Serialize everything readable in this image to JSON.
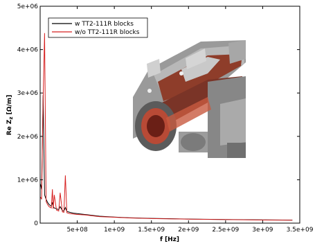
{
  "chart_data": {
    "type": "line",
    "title": "",
    "xlabel": "f [Hz]",
    "ylabel": "Re Z",
    "ylabel_subscript": "z",
    "ylabel_unit": "[Ω/m]",
    "xlim": [
      0,
      3500000000
    ],
    "ylim": [
      0,
      5000000
    ],
    "xticks": [
      500000000,
      1000000000,
      1500000000,
      2000000000,
      2500000000,
      3000000000,
      3500000000
    ],
    "xtick_labels": [
      "5e+08",
      "1e+09",
      "1.5e+09",
      "2e+09",
      "2.5e+09",
      "3e+09",
      "3.5e+09"
    ],
    "yticks": [
      0,
      1000000,
      2000000,
      3000000,
      4000000,
      5000000
    ],
    "ytick_labels": [
      "0",
      "1e+06",
      "2e+06",
      "3e+06",
      "4e+06",
      "5e+06"
    ],
    "legend_position": "top-left",
    "series": [
      {
        "name": "w TT2-111R blocks",
        "color": "#000000",
        "x": [
          5000000,
          20000000,
          40000000,
          60000000,
          80000000,
          100000000,
          120000000,
          150000000,
          165000000,
          175000000,
          190000000,
          220000000,
          250000000,
          270000000,
          300000000,
          320000000,
          340000000,
          360000000,
          400000000,
          450000000,
          500000000,
          600000000,
          700000000,
          800000000,
          1000000000,
          1200000000,
          1500000000,
          2000000000,
          2500000000,
          3000000000,
          3400000000
        ],
        "y": [
          900000,
          780000,
          2950000,
          650000,
          550000,
          480000,
          430000,
          390000,
          480000,
          380000,
          350000,
          330000,
          310000,
          380000,
          290000,
          280000,
          360000,
          270000,
          250000,
          230000,
          220000,
          200000,
          180000,
          160000,
          140000,
          125000,
          110000,
          95000,
          85000,
          75000,
          70000
        ]
      },
      {
        "name": "w/o TT2-111R blocks",
        "color": "#d62020",
        "x": [
          5000000,
          20000000,
          40000000,
          60000000,
          80000000,
          100000000,
          120000000,
          150000000,
          165000000,
          175000000,
          190000000,
          220000000,
          250000000,
          270000000,
          300000000,
          320000000,
          340000000,
          360000000,
          400000000,
          450000000,
          500000000,
          600000000,
          700000000,
          800000000,
          1000000000,
          1200000000,
          1500000000,
          2000000000,
          2500000000,
          3000000000,
          3400000000
        ],
        "y": [
          600000,
          550000,
          2850000,
          4380000,
          500000,
          430000,
          380000,
          350000,
          780000,
          330000,
          650000,
          300000,
          280000,
          700000,
          260000,
          250000,
          1100000,
          240000,
          220000,
          210000,
          200000,
          190000,
          170000,
          150000,
          135000,
          120000,
          105000,
          92000,
          82000,
          72000,
          68000
        ]
      }
    ]
  }
}
